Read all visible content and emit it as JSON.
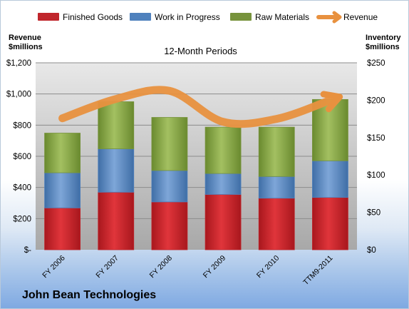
{
  "company": "John Bean Technologies",
  "chart_data": {
    "type": "bar",
    "title": "12-Month Periods",
    "categories": [
      "FY 2006",
      "FY 2007",
      "FY 2008",
      "FY 2009",
      "FY 2010",
      "TTM9-2011"
    ],
    "stacked": true,
    "y_left": {
      "label_line1": "Revenue",
      "label_line2": "$millions",
      "lim": [
        0,
        1200
      ],
      "tick_labels": [
        "$-",
        "$200",
        "$400",
        "$600",
        "$800",
        "$1,000",
        "$1,200"
      ]
    },
    "y_right": {
      "label_line1": "Inventory",
      "label_line2": "$millions",
      "lim": [
        0,
        250
      ],
      "tick_labels": [
        "$0",
        "$50",
        "$100",
        "$150",
        "$200",
        "$250"
      ]
    },
    "series": [
      {
        "name": "Finished Goods",
        "axis": "right",
        "color": "#c0262c",
        "values": [
          56,
          77,
          64,
          74,
          69,
          70
        ]
      },
      {
        "name": "Work in Progress",
        "axis": "right",
        "color": "#4f81bd",
        "values": [
          47,
          58,
          42,
          28,
          29,
          49
        ]
      },
      {
        "name": "Raw Materials",
        "axis": "right",
        "color": "#77933c",
        "values": [
          53,
          63,
          71,
          62,
          66,
          82
        ]
      },
      {
        "name": "Revenue",
        "axis": "left",
        "type": "line",
        "color": "#e8913f",
        "values": [
          844,
          968,
          1020,
          821,
          840,
          960
        ]
      }
    ],
    "legend_position": "top",
    "grid": true
  }
}
